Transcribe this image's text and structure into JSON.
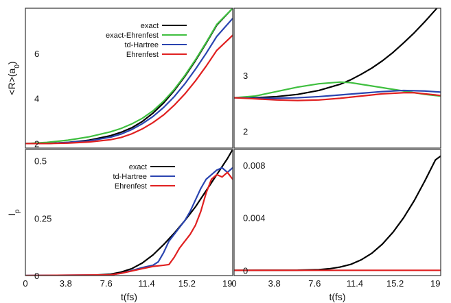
{
  "chart_data": [
    {
      "type": "line",
      "panel": "top-left",
      "ylabel": "<R>(a",
      "ylabel_sub": "0",
      "ylabel_close": ")",
      "xlim": [
        0,
        19.5
      ],
      "ylim": [
        1.8,
        8.0
      ],
      "ytick_labels": [
        {
          "v": 2,
          "t": "2"
        },
        {
          "v": 4,
          "t": "4"
        },
        {
          "v": 6,
          "t": "6"
        }
      ],
      "legend_position": "top-right",
      "series": [
        {
          "name": "exact",
          "color": "#000000",
          "x": [
            0,
            2,
            4,
            6,
            8,
            9,
            10,
            11,
            12,
            13,
            14,
            15,
            16,
            17,
            18,
            19.5
          ],
          "y": [
            2.0,
            2.0,
            2.05,
            2.15,
            2.35,
            2.5,
            2.7,
            2.98,
            3.35,
            3.8,
            4.35,
            4.98,
            5.68,
            6.45,
            7.25,
            8.0
          ]
        },
        {
          "name": "exact-Ehrenfest",
          "color": "#3fbf3f",
          "x": [
            0,
            2,
            4,
            6,
            8,
            9,
            10,
            11,
            12,
            13,
            14,
            15,
            16,
            17,
            18,
            19.5
          ],
          "y": [
            2.0,
            2.05,
            2.15,
            2.3,
            2.52,
            2.67,
            2.87,
            3.12,
            3.45,
            3.88,
            4.4,
            5.02,
            5.72,
            6.48,
            7.28,
            8.0
          ]
        },
        {
          "name": "td-Hartree",
          "color": "#2a44b0",
          "x": [
            0,
            2,
            4,
            6,
            8,
            9,
            10,
            11,
            12,
            13,
            14,
            15,
            16,
            17,
            18,
            19.5
          ],
          "y": [
            2.0,
            2.0,
            2.05,
            2.12,
            2.28,
            2.42,
            2.62,
            2.88,
            3.2,
            3.6,
            4.08,
            4.65,
            5.3,
            6.0,
            6.75,
            7.55
          ]
        },
        {
          "name": "Ehrenfest",
          "color": "#e02020",
          "x": [
            0,
            2,
            4,
            6,
            8,
            9,
            10,
            11,
            12,
            13,
            14,
            15,
            16,
            17,
            18,
            19.5
          ],
          "y": [
            2.0,
            2.0,
            2.02,
            2.07,
            2.17,
            2.27,
            2.43,
            2.65,
            2.93,
            3.27,
            3.7,
            4.2,
            4.78,
            5.43,
            6.13,
            6.8
          ]
        }
      ]
    },
    {
      "type": "line",
      "panel": "top-right",
      "xlim": [
        0,
        19.5
      ],
      "ylim": [
        1.7,
        4.2
      ],
      "ytick_labels": [
        {
          "v": 2,
          "t": "2"
        },
        {
          "v": 3,
          "t": "3"
        }
      ],
      "series": [
        {
          "name": "exact",
          "color": "#000000",
          "x": [
            0,
            2,
            4,
            6,
            8,
            10,
            11,
            12,
            13,
            14,
            15,
            16,
            17,
            18,
            19,
            19.5
          ],
          "y": [
            2.6,
            2.6,
            2.62,
            2.66,
            2.73,
            2.84,
            2.92,
            3.02,
            3.13,
            3.26,
            3.41,
            3.58,
            3.76,
            3.96,
            4.17,
            4.28
          ]
        },
        {
          "name": "exact-Ehrenfest",
          "color": "#3fbf3f",
          "x": [
            0,
            2,
            4,
            6,
            8,
            10,
            11,
            12,
            14,
            16,
            18,
            19.5
          ],
          "y": [
            2.6,
            2.63,
            2.71,
            2.79,
            2.85,
            2.88,
            2.87,
            2.84,
            2.78,
            2.72,
            2.66,
            2.63
          ]
        },
        {
          "name": "td-Hartree",
          "color": "#2a44b0",
          "x": [
            0,
            2,
            4,
            6,
            8,
            10,
            12,
            14,
            16,
            18,
            19.5
          ],
          "y": [
            2.6,
            2.59,
            2.59,
            2.6,
            2.62,
            2.65,
            2.68,
            2.71,
            2.73,
            2.72,
            2.7
          ]
        },
        {
          "name": "Ehrenfest",
          "color": "#e02020",
          "x": [
            0,
            2,
            4,
            6,
            8,
            10,
            12,
            14,
            16,
            17,
            18,
            19.5
          ],
          "y": [
            2.6,
            2.58,
            2.56,
            2.55,
            2.56,
            2.59,
            2.63,
            2.67,
            2.69,
            2.69,
            2.67,
            2.64
          ]
        }
      ]
    },
    {
      "type": "line",
      "panel": "bottom-left",
      "ylabel": "I",
      "ylabel_sub": "p",
      "xlabel": "t(fs)",
      "xlim": [
        0,
        19.5
      ],
      "ylim": [
        0,
        0.55
      ],
      "xtick_labels": [
        {
          "v": 0,
          "t": "0"
        },
        {
          "v": 3.8,
          "t": "3.8"
        },
        {
          "v": 7.6,
          "t": "7.6"
        },
        {
          "v": 11.4,
          "t": "11.4"
        },
        {
          "v": 15.2,
          "t": "15.2"
        },
        {
          "v": 19,
          "t": "19"
        }
      ],
      "ytick_labels": [
        {
          "v": 0,
          "t": "0"
        },
        {
          "v": 0.25,
          "t": "0.25"
        },
        {
          "v": 0.5,
          "t": "0.5"
        }
      ],
      "legend_position": "top-right",
      "series": [
        {
          "name": "exact",
          "color": "#000000",
          "x": [
            0,
            6,
            8,
            9,
            10,
            11,
            12,
            13,
            14,
            15,
            16,
            17,
            18,
            19,
            19.5
          ],
          "y": [
            0,
            0.001,
            0.006,
            0.015,
            0.03,
            0.055,
            0.09,
            0.135,
            0.185,
            0.24,
            0.3,
            0.37,
            0.44,
            0.51,
            0.55
          ]
        },
        {
          "name": "td-Hartree",
          "color": "#2a44b0",
          "x": [
            0,
            8,
            9,
            10,
            11,
            11.5,
            12,
            12.5,
            13,
            13.5,
            14,
            14.5,
            15,
            15.5,
            16,
            16.5,
            17,
            17.5,
            18,
            18.5,
            19,
            19.5
          ],
          "y": [
            0,
            0.003,
            0.01,
            0.022,
            0.035,
            0.04,
            0.045,
            0.06,
            0.1,
            0.15,
            0.18,
            0.21,
            0.24,
            0.28,
            0.33,
            0.38,
            0.42,
            0.44,
            0.46,
            0.47,
            0.45,
            0.47
          ]
        },
        {
          "name": "Ehrenfest",
          "color": "#e02020",
          "x": [
            0,
            8,
            9,
            10,
            11,
            12,
            13,
            13.5,
            14,
            14.5,
            15,
            15.5,
            16,
            16.5,
            17,
            17.5,
            18,
            18.5,
            19,
            19.5
          ],
          "y": [
            0,
            0.003,
            0.01,
            0.02,
            0.03,
            0.04,
            0.045,
            0.048,
            0.08,
            0.12,
            0.15,
            0.18,
            0.22,
            0.28,
            0.36,
            0.42,
            0.44,
            0.43,
            0.45,
            0.42
          ]
        }
      ]
    },
    {
      "type": "line",
      "panel": "bottom-right",
      "xlabel": "t(fs)",
      "xlim": [
        0,
        19.5
      ],
      "ylim": [
        -0.0004,
        0.0092
      ],
      "xtick_labels": [
        {
          "v": 0,
          "t": "0"
        },
        {
          "v": 3.8,
          "t": "3.8"
        },
        {
          "v": 7.6,
          "t": "7.6"
        },
        {
          "v": 11.4,
          "t": "11.4"
        },
        {
          "v": 15.2,
          "t": "15.2"
        },
        {
          "v": 19,
          "t": "19"
        }
      ],
      "ytick_labels": [
        {
          "v": 0,
          "t": "0"
        },
        {
          "v": 0.004,
          "t": "0.004"
        },
        {
          "v": 0.008,
          "t": "0.008"
        }
      ],
      "series": [
        {
          "name": "exact",
          "color": "#000000",
          "x": [
            0,
            6,
            8,
            9,
            10,
            11,
            12,
            13,
            14,
            15,
            16,
            17,
            18,
            19,
            19.5
          ],
          "y": [
            0,
            1e-05,
            5e-05,
            0.00012,
            0.00025,
            0.00045,
            0.0008,
            0.0013,
            0.002,
            0.0029,
            0.004,
            0.0053,
            0.0068,
            0.0084,
            0.0087
          ]
        },
        {
          "name": "Ehrenfest",
          "color": "#e02020",
          "x": [
            0,
            19.5
          ],
          "y": [
            0,
            0
          ]
        }
      ]
    }
  ]
}
